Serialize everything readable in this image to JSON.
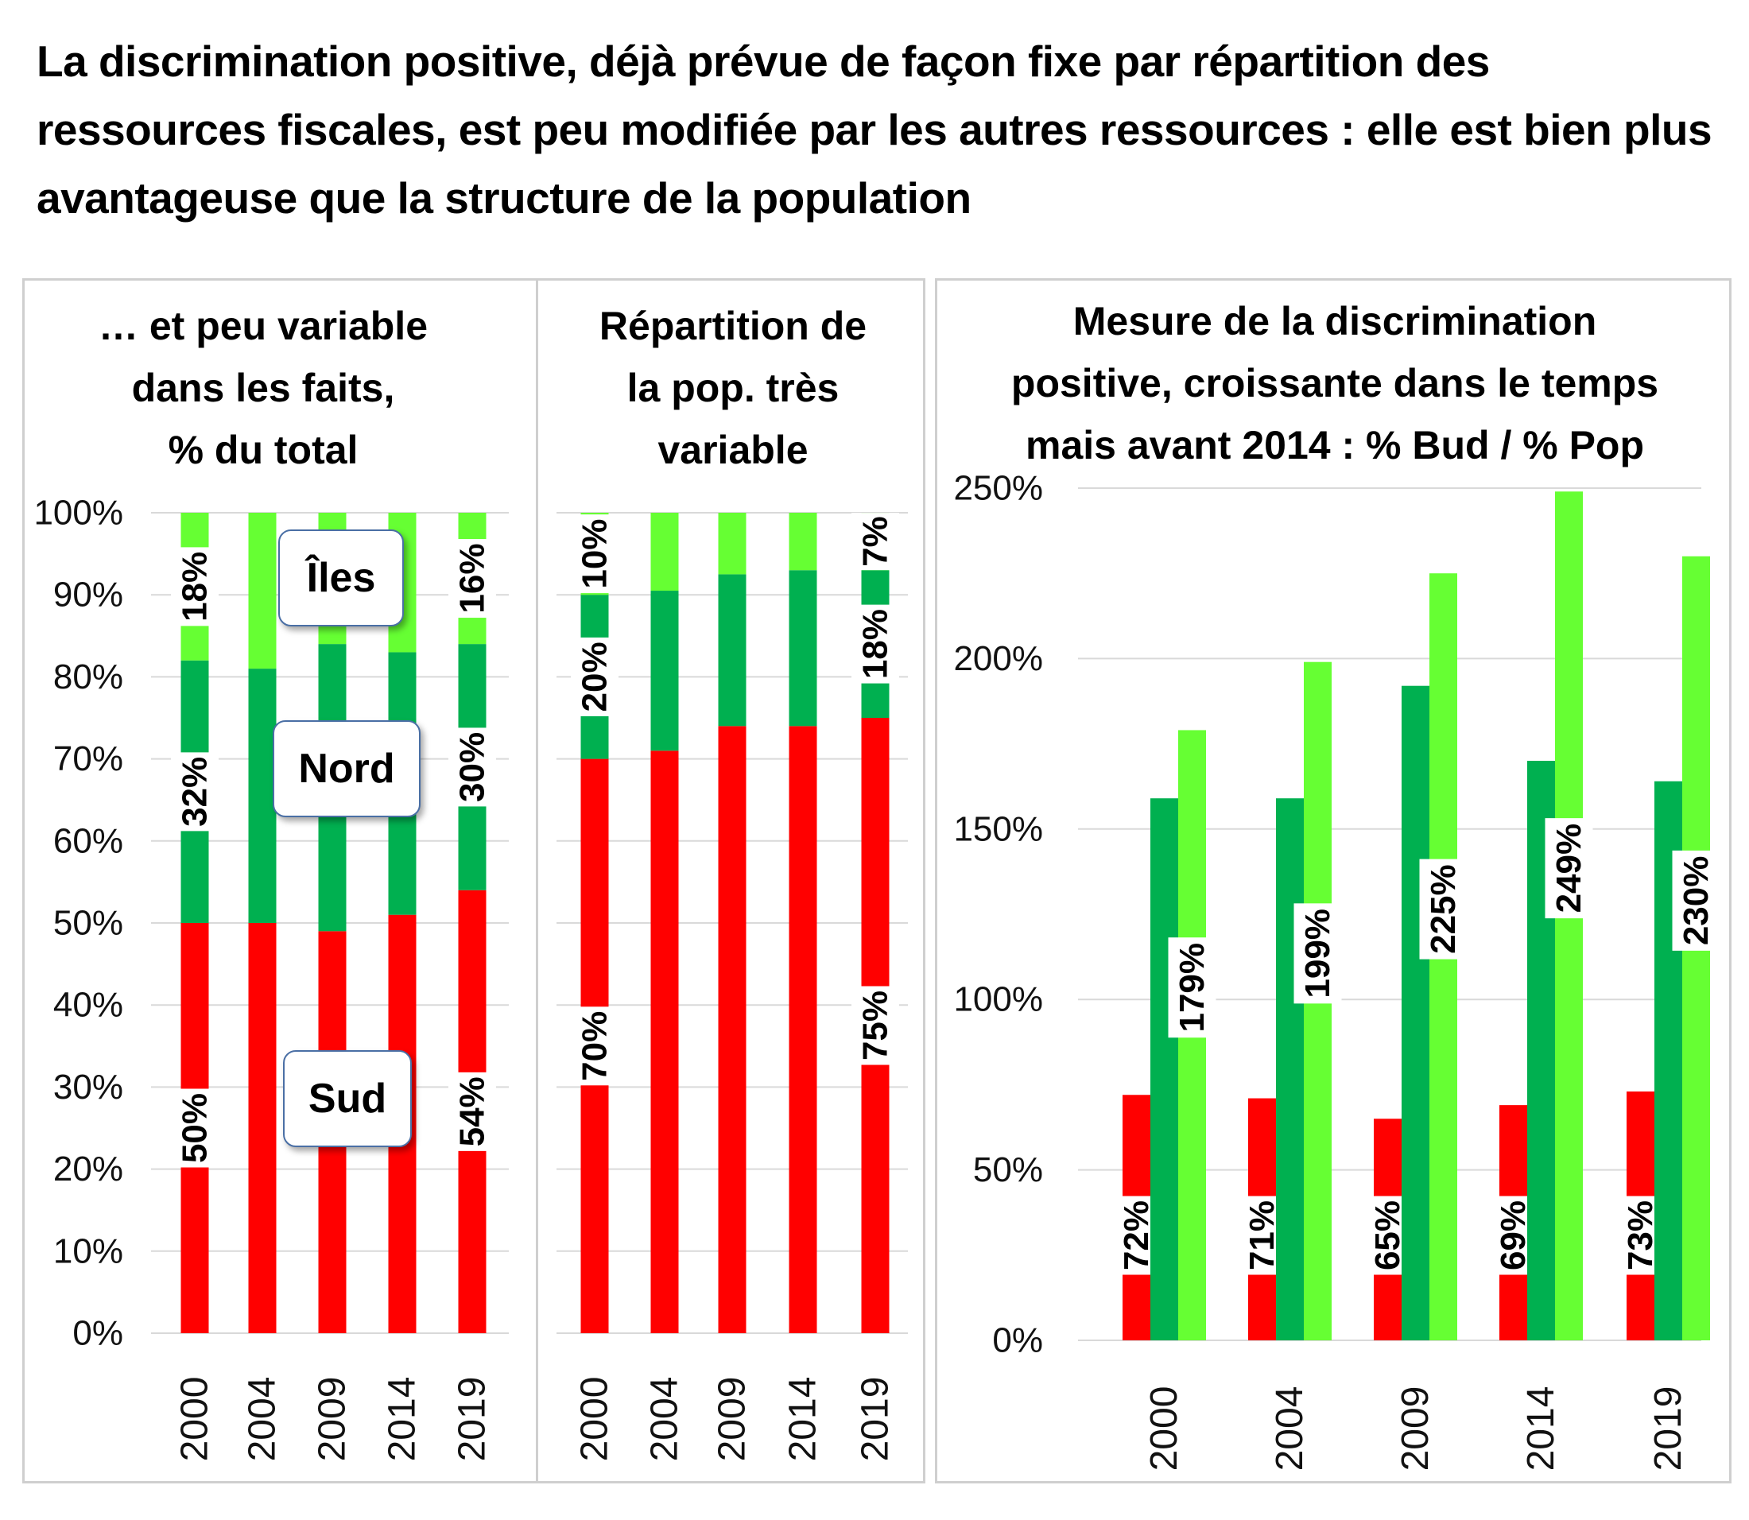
{
  "title": "La discrimination positive, déjà prévue de façon fixe par répartition des ressources fiscales, est peu modifiée par les autres ressources : elle est bien plus avantageuse que la structure de la population",
  "colors": {
    "sud": "#ff0000",
    "nord": "#00b050",
    "iles": "#66ff33",
    "grid": "#d9d9d9"
  },
  "legend": {
    "iles": "Îles",
    "nord": "Nord",
    "sud": "Sud"
  },
  "chart_data": [
    {
      "id": "left",
      "type": "bar",
      "stacked": true,
      "title": "… et peu variable dans les faits, % du total",
      "title_lines": [
        "… et peu variable",
        "dans les faits,",
        "% du total"
      ],
      "categories": [
        "2000",
        "2004",
        "2009",
        "2014",
        "2019"
      ],
      "series": [
        {
          "name": "Sud",
          "values": [
            50,
            50,
            49,
            51,
            54
          ]
        },
        {
          "name": "Nord",
          "values": [
            32,
            31,
            35,
            32,
            30
          ]
        },
        {
          "name": "Îles",
          "values": [
            18,
            19,
            16,
            17,
            16
          ]
        }
      ],
      "data_labels": [
        {
          "category": "2000",
          "series": "Sud",
          "text": "50%"
        },
        {
          "category": "2000",
          "series": "Nord",
          "text": "32%"
        },
        {
          "category": "2000",
          "series": "Îles",
          "text": "18%"
        },
        {
          "category": "2019",
          "series": "Sud",
          "text": "54%"
        },
        {
          "category": "2019",
          "series": "Nord",
          "text": "30%"
        },
        {
          "category": "2019",
          "series": "Îles",
          "text": "16%"
        }
      ],
      "ylim": [
        0,
        100
      ],
      "yticks": [
        "0%",
        "10%",
        "20%",
        "30%",
        "40%",
        "50%",
        "60%",
        "70%",
        "80%",
        "90%",
        "100%"
      ],
      "grid": true
    },
    {
      "id": "mid",
      "type": "bar",
      "stacked": true,
      "title": "Répartition de la pop. très variable",
      "title_lines": [
        "Répartition de",
        "la pop. très",
        "variable"
      ],
      "categories": [
        "2000",
        "2004",
        "2009",
        "2014",
        "2019"
      ],
      "series": [
        {
          "name": "Sud",
          "values": [
            70,
            71,
            74,
            74,
            75
          ]
        },
        {
          "name": "Nord",
          "values": [
            20,
            19.5,
            18.5,
            19,
            18
          ]
        },
        {
          "name": "Îles",
          "values": [
            10,
            9.5,
            7.5,
            7,
            7
          ]
        }
      ],
      "data_labels": [
        {
          "category": "2000",
          "series": "Sud",
          "text": "70%"
        },
        {
          "category": "2000",
          "series": "Nord",
          "text": "20%"
        },
        {
          "category": "2000",
          "series": "Îles",
          "text": "10%"
        },
        {
          "category": "2019",
          "series": "Sud",
          "text": "75%"
        },
        {
          "category": "2019",
          "series": "Nord",
          "text": "18%"
        },
        {
          "category": "2019",
          "series": "Îles",
          "text": "7%"
        }
      ],
      "ylim": [
        0,
        100
      ],
      "grid": true
    },
    {
      "id": "right",
      "type": "bar",
      "stacked": false,
      "title": "Mesure de la discrimination positive, croissante dans le temps mais avant 2014 : % Bud / % Pop",
      "title_lines": [
        "Mesure de la discrimination",
        "positive, croissante dans le temps",
        "mais avant 2014 : % Bud / % Pop"
      ],
      "categories": [
        "2000",
        "2004",
        "2009",
        "2014",
        "2019"
      ],
      "series": [
        {
          "name": "Sud",
          "values": [
            72,
            71,
            65,
            69,
            73
          ]
        },
        {
          "name": "Nord",
          "values": [
            159,
            159,
            192,
            170,
            164
          ]
        },
        {
          "name": "Îles",
          "values": [
            179,
            199,
            225,
            249,
            230
          ]
        }
      ],
      "data_labels": [
        {
          "category": "2000",
          "series": "Sud",
          "text": "72%"
        },
        {
          "category": "2004",
          "series": "Sud",
          "text": "71%"
        },
        {
          "category": "2009",
          "series": "Sud",
          "text": "65%"
        },
        {
          "category": "2014",
          "series": "Sud",
          "text": "69%"
        },
        {
          "category": "2019",
          "series": "Sud",
          "text": "73%"
        },
        {
          "category": "2000",
          "series": "Îles",
          "text": "179%"
        },
        {
          "category": "2004",
          "series": "Îles",
          "text": "199%"
        },
        {
          "category": "2009",
          "series": "Îles",
          "text": "225%"
        },
        {
          "category": "2014",
          "series": "Îles",
          "text": "249%"
        },
        {
          "category": "2019",
          "series": "Îles",
          "text": "230%"
        }
      ],
      "ylim": [
        0,
        250
      ],
      "yticks": [
        "0%",
        "50%",
        "100%",
        "150%",
        "200%",
        "250%"
      ],
      "grid": true
    }
  ]
}
